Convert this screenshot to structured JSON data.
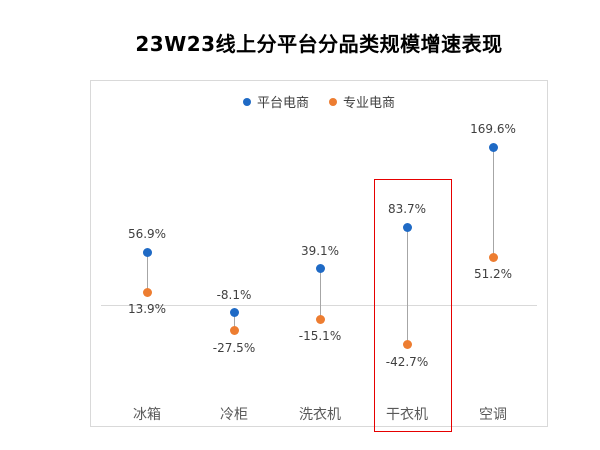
{
  "title": "23W23线上分平台分品类规模增速表现",
  "colors": {
    "platform_blue": "#1f6ac5",
    "specialist_orange": "#ed7d31",
    "stem_gray": "#a6a6a6",
    "zero_line_gray": "#d9d9d9",
    "frame_border_gray": "#d9d9d9",
    "highlight_red": "#e60000",
    "value_label": "#3f3f3f",
    "category_label": "#595959"
  },
  "legend": [
    {
      "label": "平台电商",
      "color": "#1f6ac5"
    },
    {
      "label": "专业电商",
      "color": "#ed7d31"
    }
  ],
  "chart_data": {
    "type": "scatter",
    "variant": "dumbbell-range",
    "title": "23W23线上分平台分品类规模增速表现",
    "categories": [
      "冰箱",
      "冷柜",
      "洗衣机",
      "干衣机",
      "空调"
    ],
    "series": [
      {
        "name": "平台电商",
        "color": "#1f6ac5",
        "values": [
          56.9,
          -8.1,
          39.1,
          83.7,
          169.6
        ]
      },
      {
        "name": "专业电商",
        "color": "#ed7d31",
        "values": [
          13.9,
          -27.5,
          -15.1,
          -42.7,
          51.2
        ]
      }
    ],
    "value_labels": [
      [
        "56.9%",
        "-8.1%",
        "39.1%",
        "83.7%",
        "169.6%"
      ],
      [
        "13.9%",
        "-27.5%",
        "-15.1%",
        "-42.7%",
        "51.2%"
      ]
    ],
    "unit": "%",
    "baseline": 0,
    "grid": "single zero gridline",
    "legend_position": "top-center",
    "highlighted_category": "干衣机"
  }
}
